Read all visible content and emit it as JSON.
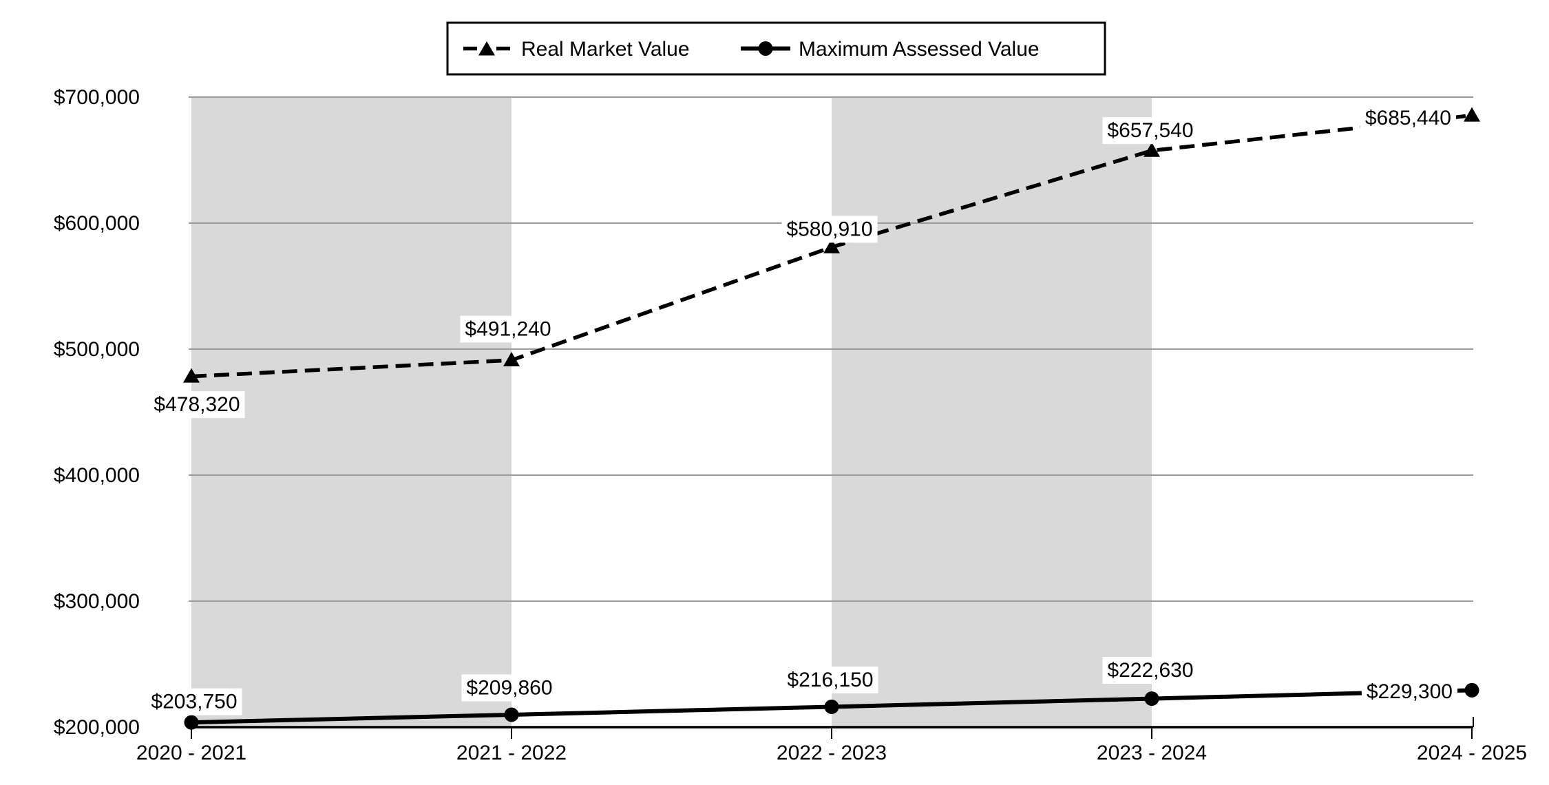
{
  "chart_data": {
    "type": "line",
    "title": "",
    "categories": [
      "2020 - 2021",
      "2021 - 2022",
      "2022 - 2023",
      "2023 - 2024",
      "2024 - 2025"
    ],
    "series": [
      {
        "name": "Real Market Value",
        "values": [
          478320,
          491240,
          580910,
          657540,
          685440
        ],
        "data_labels": [
          "$478,320",
          "$491,240",
          "$580,910",
          "$657,540",
          "$685,440"
        ],
        "line_style": "dashed",
        "marker": "triangle",
        "color": "#000000"
      },
      {
        "name": "Maximum Assessed Value",
        "values": [
          203750,
          209860,
          216150,
          222630,
          229300
        ],
        "data_labels": [
          "$203,750",
          "$209,860",
          "$216,150",
          "$222,630",
          "$229,300"
        ],
        "line_style": "solid",
        "marker": "circle",
        "color": "#000000"
      }
    ],
    "y_axis": {
      "min": 200000,
      "max": 700000,
      "tick_interval": 100000,
      "tick_labels": [
        "$200,000",
        "$300,000",
        "$400,000",
        "$500,000",
        "$600,000",
        "$700,000"
      ]
    },
    "legend": {
      "position": "top"
    },
    "plot_bands": {
      "ranges": [
        [
          0,
          1
        ],
        [
          2,
          3
        ]
      ]
    },
    "grid": true,
    "colors": {
      "series": "#000000",
      "gridline": "#9a9a9a",
      "axis": "#000000",
      "band": "#d9d9d9",
      "background": "#ffffff",
      "data_label_bg": "#ffffff",
      "legend_border": "#000000"
    }
  }
}
